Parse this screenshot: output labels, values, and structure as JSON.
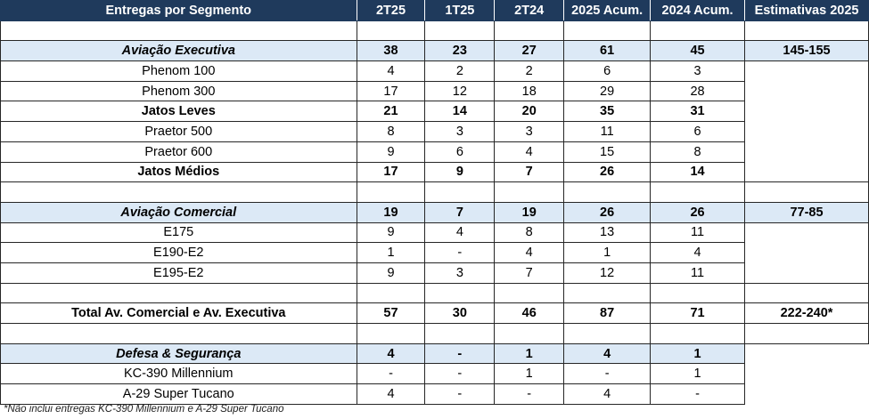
{
  "table": {
    "headers": [
      "Entregas por Segmento",
      "2T25",
      "1T25",
      "2T24",
      "2025 Acum.",
      "2024 Acum.",
      "Estimativas 2025"
    ],
    "rows": [
      {
        "type": "blank",
        "cells": [
          "",
          "",
          "",
          "",
          "",
          "",
          ""
        ]
      },
      {
        "type": "hl",
        "cells": [
          "Aviação Executiva",
          "38",
          "23",
          "27",
          "61",
          "45",
          "145-155"
        ]
      },
      {
        "type": "plain",
        "cells": [
          "Phenom 100",
          "4",
          "2",
          "2",
          "6",
          "3",
          ""
        ]
      },
      {
        "type": "plain",
        "cells": [
          "Phenom 300",
          "17",
          "12",
          "18",
          "29",
          "28",
          ""
        ]
      },
      {
        "type": "bold",
        "cells": [
          "Jatos Leves",
          "21",
          "14",
          "20",
          "35",
          "31",
          ""
        ]
      },
      {
        "type": "plain",
        "cells": [
          "Praetor 500",
          "8",
          "3",
          "3",
          "11",
          "6",
          ""
        ]
      },
      {
        "type": "plain",
        "cells": [
          "Praetor 600",
          "9",
          "6",
          "4",
          "15",
          "8",
          ""
        ]
      },
      {
        "type": "bold",
        "cells": [
          "Jatos Médios",
          "17",
          "9",
          "7",
          "26",
          "14",
          ""
        ]
      },
      {
        "type": "blank",
        "cells": [
          "",
          "",
          "",
          "",
          "",
          "",
          ""
        ]
      },
      {
        "type": "hl",
        "cells": [
          "Aviação Comercial",
          "19",
          "7",
          "19",
          "26",
          "26",
          "77-85"
        ]
      },
      {
        "type": "plain",
        "cells": [
          "E175",
          "9",
          "4",
          "8",
          "13",
          "11",
          ""
        ]
      },
      {
        "type": "plain",
        "cells": [
          "E190-E2",
          "1",
          "-",
          "4",
          "1",
          "4",
          ""
        ]
      },
      {
        "type": "plain",
        "cells": [
          "E195-E2",
          "9",
          "3",
          "7",
          "12",
          "11",
          ""
        ]
      },
      {
        "type": "blank",
        "cells": [
          "",
          "",
          "",
          "",
          "",
          "",
          ""
        ]
      },
      {
        "type": "total",
        "cells": [
          "Total Av. Comercial e Av. Executiva",
          "57",
          "30",
          "46",
          "87",
          "71",
          "222-240*"
        ]
      },
      {
        "type": "blank",
        "cells": [
          "",
          "",
          "",
          "",
          "",
          "",
          ""
        ]
      },
      {
        "type": "hl",
        "cells": [
          "Defesa & Segurança",
          "4",
          "-",
          "1",
          "4",
          "1",
          ""
        ]
      },
      {
        "type": "plain",
        "cells": [
          "KC-390 Millennium",
          "-",
          "-",
          "1",
          "-",
          "1",
          ""
        ]
      },
      {
        "type": "plain",
        "cells": [
          "A-29 Super Tucano",
          "4",
          "-",
          "-",
          "4",
          "-",
          ""
        ]
      }
    ]
  },
  "footnote": "*Não inclui entregas KC-390 Millennium e A-29 Super Tucano"
}
